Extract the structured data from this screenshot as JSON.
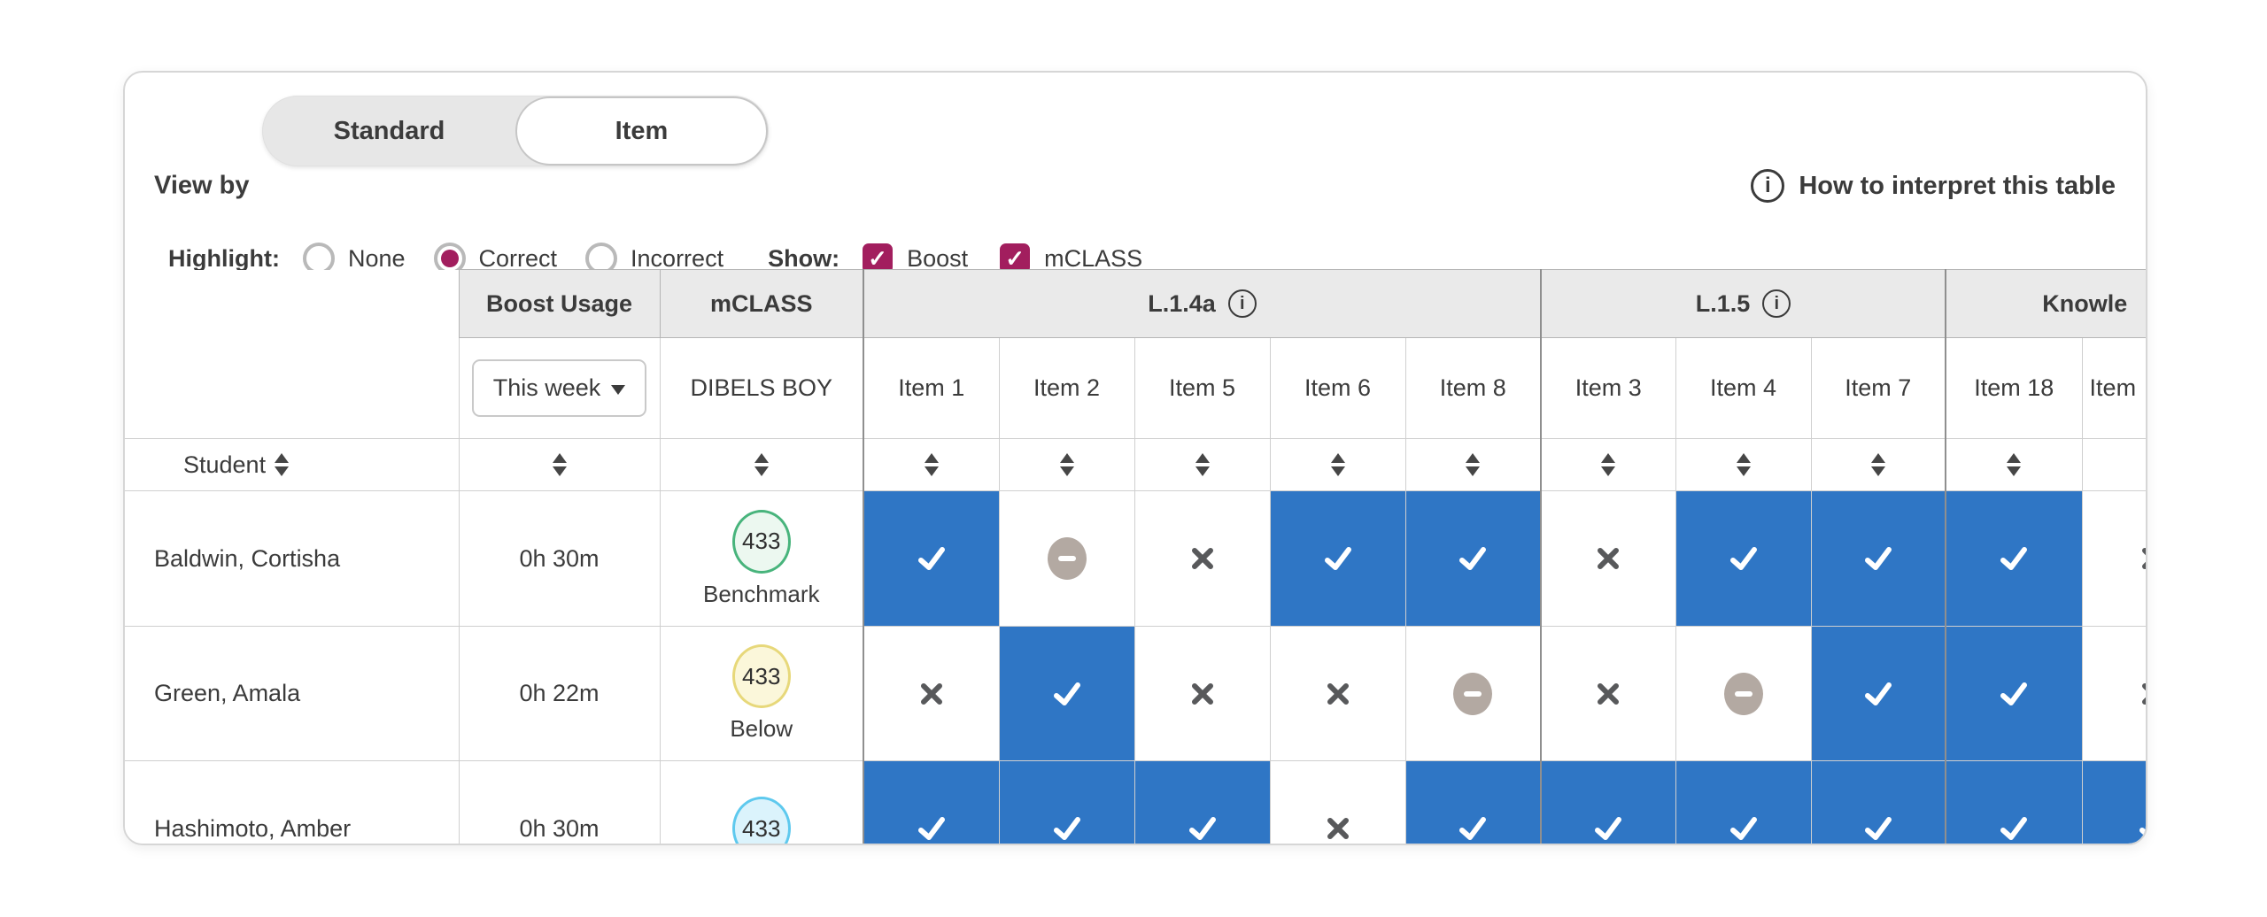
{
  "header": {
    "view_by_label": "View by",
    "toggle": {
      "options": [
        "Standard",
        "Item"
      ],
      "selected": "Item"
    },
    "help_link": "How to interpret this table"
  },
  "controls": {
    "highlight_label": "Highlight:",
    "highlight_options": [
      {
        "label": "None",
        "selected": false
      },
      {
        "label": "Correct",
        "selected": true
      },
      {
        "label": "Incorrect",
        "selected": false
      }
    ],
    "show_label": "Show:",
    "show_options": [
      {
        "label": "Boost",
        "checked": true
      },
      {
        "label": "mCLASS",
        "checked": true
      }
    ]
  },
  "table": {
    "student_header": "Student",
    "groups": [
      {
        "label": "Boost Usage",
        "info": false,
        "cols": 1
      },
      {
        "label": "mCLASS",
        "info": false,
        "cols": 1
      },
      {
        "label": "L.1.4a",
        "info": true,
        "cols": 5
      },
      {
        "label": "L.1.5",
        "info": true,
        "cols": 3
      },
      {
        "label": "Knowle",
        "info": false,
        "cols": 2
      }
    ],
    "boost_filter": "This week",
    "mclass_subheader": "DIBELS BOY",
    "item_headers": [
      "Item 1",
      "Item 2",
      "Item 5",
      "Item 6",
      "Item 8",
      "Item 3",
      "Item 4",
      "Item 7",
      "Item 18",
      "Item"
    ],
    "rows": [
      {
        "student": "Baldwin, Cortisha",
        "boost_usage": "0h 30m",
        "mclass": {
          "score": "433",
          "label": "Benchmark",
          "color": "green"
        },
        "results": [
          "correct",
          "dash",
          "incorrect",
          "correct",
          "correct",
          "incorrect",
          "correct",
          "correct",
          "correct",
          "incorrect"
        ]
      },
      {
        "student": "Green, Amala",
        "boost_usage": "0h 22m",
        "mclass": {
          "score": "433",
          "label": "Below",
          "color": "yellow"
        },
        "results": [
          "incorrect",
          "correct",
          "incorrect",
          "incorrect",
          "dash",
          "incorrect",
          "dash",
          "correct",
          "correct",
          "incorrect"
        ]
      },
      {
        "student": "Hashimoto, Amber",
        "boost_usage": "0h 30m",
        "mclass": {
          "score": "433",
          "label": "",
          "color": "lightblue"
        },
        "results": [
          "correct",
          "correct",
          "correct",
          "incorrect",
          "correct",
          "correct",
          "correct",
          "correct",
          "correct",
          "correct"
        ]
      }
    ]
  },
  "colors": {
    "accent_magenta": "#A21E5E",
    "correct_blue": "#2F76C5",
    "incorrect_x": "#58595B",
    "not_answered_gray": "#B3A9A2",
    "header_gray": "#EAEAEA",
    "benchmark_green_border": "#48B47C",
    "benchmark_green_fill": "#ECF8F0",
    "below_yellow_border": "#E7D87A",
    "below_yellow_fill": "#FBF7DA",
    "lightblue_border": "#5EC9EE",
    "lightblue_fill": "#DBF3FC"
  }
}
